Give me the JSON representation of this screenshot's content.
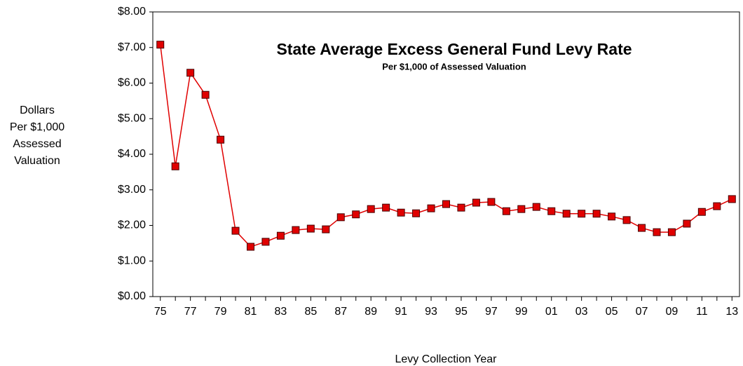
{
  "chart_data": {
    "type": "line",
    "title": "State Average Excess General Fund Levy Rate",
    "subtitle": "Per $1,000 of Assessed Valuation",
    "ylabel": [
      "Dollars",
      "Per $1,000",
      "Assessed",
      "Valuation"
    ],
    "xlabel": "Levy Collection Year",
    "categories": [
      "75",
      null,
      "77",
      null,
      "79",
      null,
      "81",
      null,
      "83",
      null,
      "85",
      null,
      "87",
      null,
      "89",
      null,
      "91",
      null,
      "93",
      null,
      "95",
      null,
      "97",
      null,
      "99",
      null,
      "01",
      null,
      "03",
      null,
      "05",
      null,
      "07",
      null,
      "09",
      null,
      "11",
      null,
      "13"
    ],
    "series": [
      {
        "color": "#e00000",
        "values": [
          7.08,
          3.66,
          6.29,
          5.67,
          4.41,
          1.85,
          1.4,
          1.54,
          1.71,
          1.87,
          1.91,
          1.89,
          2.23,
          2.31,
          2.46,
          2.5,
          2.36,
          2.34,
          2.48,
          2.6,
          2.5,
          2.64,
          2.66,
          2.4,
          2.46,
          2.52,
          2.4,
          2.33,
          2.33,
          2.33,
          2.25,
          2.15,
          1.93,
          1.81,
          1.81,
          2.05,
          2.38,
          2.54,
          2.74
        ]
      }
    ],
    "ylim": [
      0,
      8
    ],
    "yticks": [
      {
        "value": 0,
        "label": "$0.00"
      },
      {
        "value": 1,
        "label": "$1.00"
      },
      {
        "value": 2,
        "label": "$2.00"
      },
      {
        "value": 3,
        "label": "$3.00"
      },
      {
        "value": 4,
        "label": "$4.00"
      },
      {
        "value": 5,
        "label": "$5.00"
      },
      {
        "value": 6,
        "label": "$6.00"
      },
      {
        "value": 7,
        "label": "$7.00"
      },
      {
        "value": 8,
        "label": "$8.00"
      }
    ],
    "grid": false
  }
}
